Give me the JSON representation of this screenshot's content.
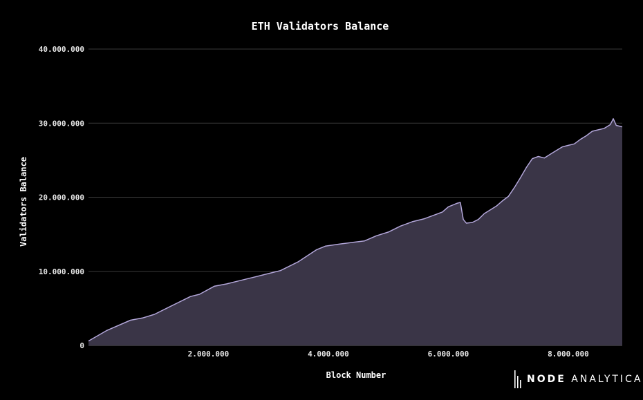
{
  "chart_data": {
    "type": "area",
    "title": "ETH Validators Balance",
    "xlabel": "Block Number",
    "ylabel": "Validators Balance",
    "xlim": [
      0,
      8900000
    ],
    "ylim": [
      0,
      40000000
    ],
    "x_ticks": [
      {
        "value": 2000000,
        "label": "2.000.000"
      },
      {
        "value": 4000000,
        "label": "4.000.000"
      },
      {
        "value": 6000000,
        "label": "6.000.000"
      },
      {
        "value": 8000000,
        "label": "8.000.000"
      }
    ],
    "y_ticks": [
      {
        "value": 0,
        "label": "0"
      },
      {
        "value": 10000000,
        "label": "10.000.000"
      },
      {
        "value": 20000000,
        "label": "20.000.000"
      },
      {
        "value": 30000000,
        "label": "30.000.000"
      },
      {
        "value": 40000000,
        "label": "40.000.000"
      }
    ],
    "grid": "horizontal",
    "colors": {
      "line": "#b3a7da",
      "fill": "#3a3547",
      "grid": "#3a3a3a",
      "axis": "#666666"
    },
    "series": [
      {
        "x": [
          0,
          300000,
          700000,
          900000,
          1100000,
          1400000,
          1700000,
          1850000,
          2100000,
          2300000,
          2500000,
          2800000,
          3000000,
          3200000,
          3500000,
          3800000,
          3950000,
          4200000,
          4400000,
          4600000,
          4800000,
          5000000,
          5200000,
          5400000,
          5600000,
          5800000,
          5900000,
          6000000,
          6150000,
          6200000,
          6250000,
          6300000,
          6400000,
          6500000,
          6600000,
          6700000,
          6800000,
          6900000,
          7000000,
          7100000,
          7200000,
          7300000,
          7400000,
          7500000,
          7600000,
          7700000,
          7800000,
          7900000,
          8000000,
          8100000,
          8200000,
          8300000,
          8400000,
          8500000,
          8600000,
          8700000,
          8750000,
          8800000,
          8900000
        ],
        "y": [
          600000,
          2000000,
          3400000,
          3700000,
          4200000,
          5400000,
          6600000,
          6900000,
          8000000,
          8300000,
          8700000,
          9300000,
          9700000,
          10100000,
          11300000,
          12900000,
          13400000,
          13700000,
          13900000,
          14100000,
          14800000,
          15300000,
          16100000,
          16700000,
          17100000,
          17700000,
          18000000,
          18700000,
          19200000,
          19300000,
          17000000,
          16500000,
          16600000,
          17000000,
          17800000,
          18300000,
          18800000,
          19500000,
          20100000,
          21300000,
          22600000,
          24000000,
          25200000,
          25500000,
          25300000,
          25800000,
          26300000,
          26800000,
          27000000,
          27200000,
          27800000,
          28300000,
          28900000,
          29100000,
          29300000,
          29800000,
          30600000,
          29700000,
          29500000
        ]
      }
    ]
  },
  "watermark": {
    "strong": "NODE",
    "light": " ANALYTICA"
  }
}
